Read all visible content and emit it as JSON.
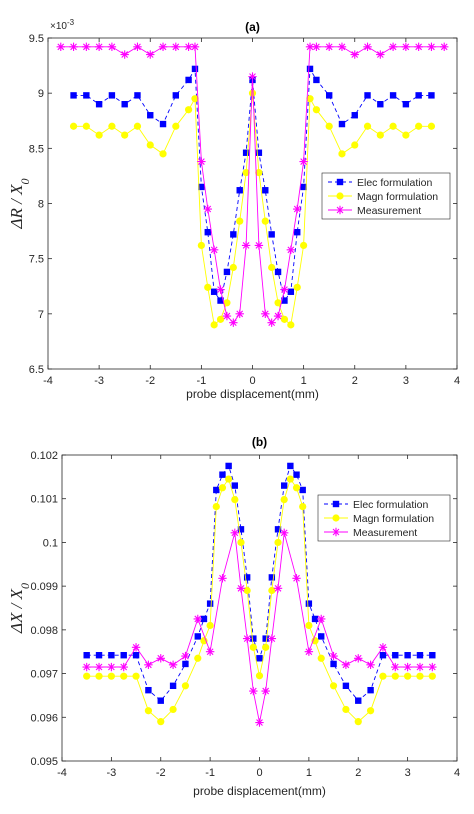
{
  "chart_data": [
    {
      "type": "line",
      "title": "(a)",
      "xlabel": "probe displacement(mm)",
      "ylabel": "ΔR / X0",
      "y_multiplier": "×10-3",
      "xlim": [
        -4,
        4
      ],
      "ylim": [
        6.5,
        9.5
      ],
      "xticks": [
        "-4",
        "-3",
        "-2",
        "-1",
        "0",
        "1",
        "2",
        "3",
        "4"
      ],
      "yticks": [
        "6.5",
        "7",
        "7.5",
        "8",
        "8.5",
        "9",
        "9.5"
      ],
      "legend_position": "right",
      "series": [
        {
          "name": "Elec formulation",
          "color": "#0000ff",
          "marker": "square",
          "linestyle": "dashed",
          "x": [
            -3.5,
            -3.25,
            -3.0,
            -2.75,
            -2.5,
            -2.25,
            -2.0,
            -1.75,
            -1.5,
            -1.25,
            -1.125,
            -1.0,
            -0.875,
            -0.75,
            -0.625,
            -0.5,
            -0.375,
            -0.25,
            -0.125,
            0,
            0.125,
            0.25,
            0.375,
            0.5,
            0.625,
            0.75,
            0.875,
            1.0,
            1.125,
            1.25,
            1.5,
            1.75,
            2.0,
            2.25,
            2.5,
            2.75,
            3.0,
            3.25,
            3.5
          ],
          "y": [
            8.98,
            8.98,
            8.9,
            8.98,
            8.9,
            8.98,
            8.8,
            8.72,
            8.98,
            9.12,
            9.22,
            8.15,
            7.74,
            7.2,
            7.12,
            7.38,
            7.72,
            8.12,
            8.46,
            9.12,
            8.46,
            8.12,
            7.72,
            7.38,
            7.12,
            7.2,
            7.74,
            8.15,
            9.22,
            9.12,
            8.98,
            8.72,
            8.8,
            8.98,
            8.9,
            8.98,
            8.9,
            8.98,
            8.98
          ]
        },
        {
          "name": "Magn formulation",
          "color": "#ffff00",
          "marker": "circle",
          "linestyle": "solid",
          "x": [
            -3.5,
            -3.25,
            -3.0,
            -2.75,
            -2.5,
            -2.25,
            -2.0,
            -1.75,
            -1.5,
            -1.25,
            -1.125,
            -1.0,
            -0.875,
            -0.75,
            -0.625,
            -0.5,
            -0.375,
            -0.25,
            -0.125,
            0,
            0.125,
            0.25,
            0.375,
            0.5,
            0.625,
            0.75,
            0.875,
            1.0,
            1.125,
            1.25,
            1.5,
            1.75,
            2.0,
            2.25,
            2.5,
            2.75,
            3.0,
            3.25,
            3.5
          ],
          "y": [
            8.7,
            8.7,
            8.62,
            8.7,
            8.62,
            8.7,
            8.53,
            8.45,
            8.7,
            8.85,
            8.95,
            7.62,
            7.24,
            6.9,
            6.95,
            7.1,
            7.42,
            7.84,
            8.28,
            9.0,
            8.28,
            7.84,
            7.42,
            7.1,
            6.95,
            6.9,
            7.24,
            7.62,
            8.95,
            8.85,
            8.7,
            8.45,
            8.53,
            8.7,
            8.62,
            8.7,
            8.62,
            8.7,
            8.7
          ]
        },
        {
          "name": "Measurement",
          "color": "#ff00ff",
          "marker": "asterisk",
          "linestyle": "solid",
          "x": [
            -3.75,
            -3.5,
            -3.25,
            -3.0,
            -2.75,
            -2.5,
            -2.25,
            -2.0,
            -1.75,
            -1.5,
            -1.25,
            -1.125,
            -1.0,
            -0.875,
            -0.75,
            -0.625,
            -0.5,
            -0.375,
            -0.25,
            -0.125,
            0,
            0.125,
            0.25,
            0.375,
            0.5,
            0.625,
            0.75,
            0.875,
            1.0,
            1.125,
            1.25,
            1.5,
            1.75,
            2.0,
            2.25,
            2.5,
            2.75,
            3.0,
            3.25,
            3.5,
            3.75
          ],
          "y": [
            9.42,
            9.42,
            9.42,
            9.42,
            9.42,
            9.35,
            9.42,
            9.35,
            9.42,
            9.42,
            9.42,
            9.42,
            8.38,
            7.95,
            7.58,
            7.22,
            6.98,
            6.92,
            7.0,
            7.62,
            9.15,
            7.62,
            7.0,
            6.92,
            6.98,
            7.22,
            7.58,
            7.95,
            8.38,
            9.42,
            9.42,
            9.42,
            9.42,
            9.35,
            9.42,
            9.35,
            9.42,
            9.42,
            9.42,
            9.42,
            9.42
          ]
        }
      ]
    },
    {
      "type": "line",
      "title": "(b)",
      "xlabel": "probe displacement(mm)",
      "ylabel": "ΔX / X0",
      "xlim": [
        -4,
        4
      ],
      "ylim": [
        0.095,
        0.102
      ],
      "xticks": [
        "-4",
        "-3",
        "-2",
        "-1",
        "0",
        "1",
        "2",
        "3",
        "4"
      ],
      "yticks": [
        "0.095",
        "0.096",
        "0.097",
        "0.098",
        "0.099",
        "0.1",
        "0.101",
        "0.102"
      ],
      "legend_position": "right",
      "series": [
        {
          "name": "Elec formulation",
          "color": "#0000ff",
          "marker": "square",
          "linestyle": "dashed",
          "x": [
            -3.5,
            -3.25,
            -3.0,
            -2.75,
            -2.5,
            -2.25,
            -2.0,
            -1.75,
            -1.5,
            -1.25,
            -1.125,
            -1.0,
            -0.875,
            -0.75,
            -0.625,
            -0.5,
            -0.375,
            -0.25,
            -0.125,
            0,
            0.125,
            0.25,
            0.375,
            0.5,
            0.625,
            0.75,
            0.875,
            1.0,
            1.125,
            1.25,
            1.5,
            1.75,
            2.0,
            2.25,
            2.5,
            2.75,
            3.0,
            3.25,
            3.5
          ],
          "y": [
            0.09742,
            0.09742,
            0.09742,
            0.09742,
            0.09742,
            0.09662,
            0.09638,
            0.09672,
            0.09722,
            0.09785,
            0.09825,
            0.0986,
            0.1012,
            0.10155,
            0.10175,
            0.1013,
            0.1003,
            0.0992,
            0.0978,
            0.09735,
            0.0978,
            0.0992,
            0.1003,
            0.1013,
            0.10175,
            0.10155,
            0.1012,
            0.0986,
            0.09825,
            0.09785,
            0.09722,
            0.09672,
            0.09638,
            0.09662,
            0.09742,
            0.09742,
            0.09742,
            0.09742,
            0.09742
          ]
        },
        {
          "name": "Magn formulation",
          "color": "#ffff00",
          "marker": "circle",
          "linestyle": "solid",
          "x": [
            -3.5,
            -3.25,
            -3.0,
            -2.75,
            -2.5,
            -2.25,
            -2.0,
            -1.75,
            -1.5,
            -1.25,
            -1.125,
            -1.0,
            -0.875,
            -0.75,
            -0.625,
            -0.5,
            -0.375,
            -0.25,
            -0.125,
            0,
            0.125,
            0.25,
            0.375,
            0.5,
            0.625,
            0.75,
            0.875,
            1.0,
            1.125,
            1.25,
            1.5,
            1.75,
            2.0,
            2.25,
            2.5,
            2.75,
            3.0,
            3.25,
            3.5
          ],
          "y": [
            0.09694,
            0.09694,
            0.09694,
            0.09694,
            0.09694,
            0.09615,
            0.0959,
            0.09618,
            0.09672,
            0.09735,
            0.09775,
            0.0981,
            0.10082,
            0.10125,
            0.10145,
            0.10098,
            0.1,
            0.0989,
            0.0976,
            0.09695,
            0.0976,
            0.0989,
            0.1,
            0.10098,
            0.10145,
            0.10125,
            0.10082,
            0.0981,
            0.09775,
            0.09735,
            0.09672,
            0.09618,
            0.0959,
            0.09615,
            0.09694,
            0.09694,
            0.09694,
            0.09694,
            0.09694
          ]
        },
        {
          "name": "Measurement",
          "color": "#ff00ff",
          "marker": "asterisk",
          "linestyle": "solid",
          "x": [
            -3.5,
            -3.25,
            -3.0,
            -2.75,
            -2.5,
            -2.25,
            -2.0,
            -1.75,
            -1.5,
            -1.25,
            -1.0,
            -0.75,
            -0.5,
            -0.375,
            -0.25,
            -0.125,
            0,
            0.125,
            0.25,
            0.375,
            0.5,
            0.75,
            1.0,
            1.25,
            1.5,
            1.75,
            2.0,
            2.25,
            2.5,
            2.75,
            3.0,
            3.25,
            3.5
          ],
          "y": [
            0.09715,
            0.09715,
            0.09715,
            0.09715,
            0.0976,
            0.0972,
            0.09735,
            0.0972,
            0.0974,
            0.09825,
            0.0975,
            0.09918,
            0.10022,
            0.09895,
            0.0978,
            0.0966,
            0.09588,
            0.0966,
            0.0978,
            0.09895,
            0.10022,
            0.09918,
            0.0975,
            0.09825,
            0.0974,
            0.0972,
            0.09735,
            0.0972,
            0.0976,
            0.09715,
            0.09715,
            0.09715,
            0.09715
          ]
        }
      ]
    }
  ]
}
